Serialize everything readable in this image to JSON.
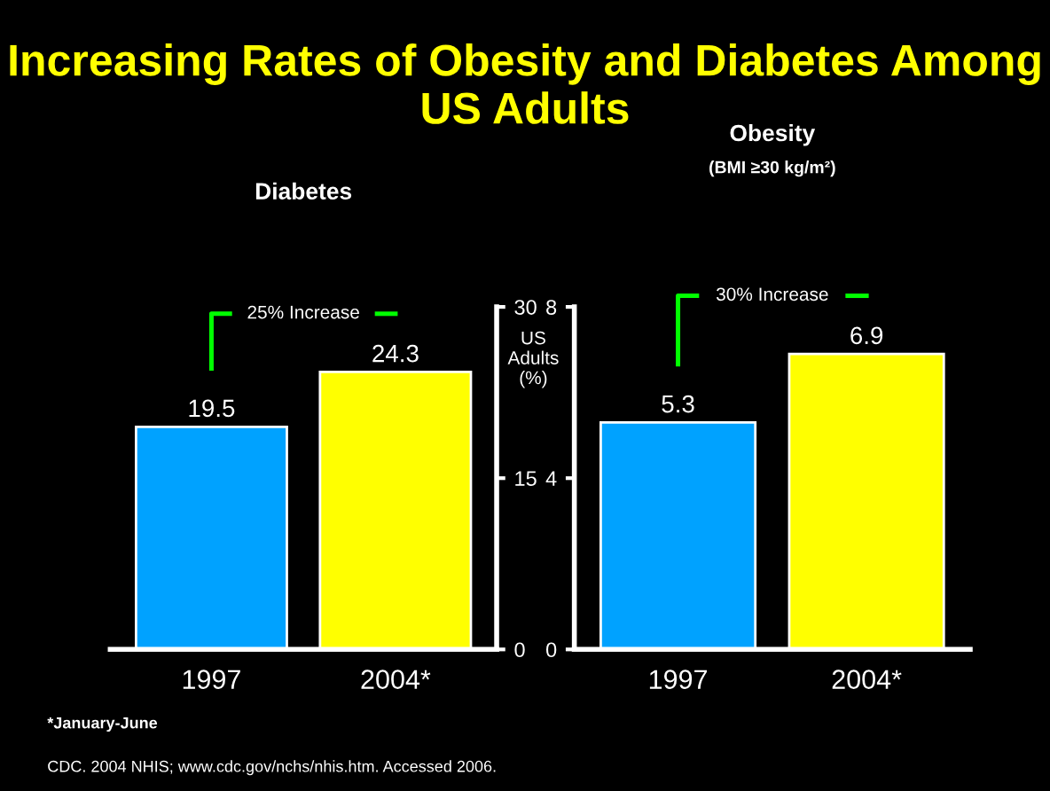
{
  "chart_data": [
    {
      "type": "other",
      "title": "Increasing Rates of Obesity and Diabetes Among US Adults",
      "annotations": [
        "*January-June",
        "CDC. 2004 NHIS; www.cdc.gov/nchs/nhis.htm. Accessed 2006."
      ]
    },
    {
      "type": "bar",
      "title": "Diabetes",
      "categories": [
        "1997",
        "2004*"
      ],
      "values": [
        19.5,
        24.3
      ],
      "colors": [
        "#00a2ff",
        "#ffff00"
      ],
      "ylim": [
        0,
        30
      ],
      "yticks": [
        0,
        15,
        30
      ],
      "ylabel": "US\nAdults\n(%)",
      "data_labels": true,
      "annotations": [
        "25% Increase"
      ],
      "grid": false,
      "legend": false
    },
    {
      "type": "bar",
      "title": "Obesity",
      "subtitle": "(BMI ≥30 kg/m²)",
      "categories": [
        "1997",
        "2004*"
      ],
      "values": [
        5.3,
        6.9
      ],
      "colors": [
        "#00a2ff",
        "#ffff00"
      ],
      "ylim": [
        0,
        8
      ],
      "yticks": [
        0,
        4,
        8
      ],
      "data_labels": true,
      "annotations": [
        "30% Increase"
      ],
      "grid": false,
      "legend": false
    }
  ]
}
